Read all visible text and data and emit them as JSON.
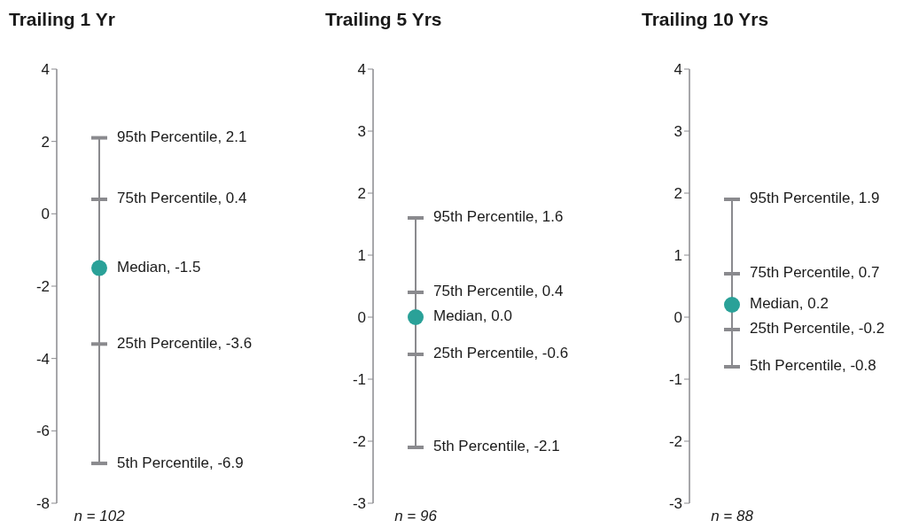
{
  "chart_data": [
    {
      "type": "box",
      "title": "Trailing 1 Yr",
      "categories": [
        "n = 102"
      ],
      "color": "#8a8a8e",
      "marker": "circle",
      "ylim": [
        -8,
        4
      ],
      "yticks": [
        -8,
        -6,
        -4,
        -2,
        0,
        2,
        4
      ],
      "grid": false,
      "legend": false,
      "boxes": [
        {
          "low": -6.9,
          "q1": -3.6,
          "median": -1.5,
          "q3": 0.4,
          "high": 2.1
        }
      ],
      "annotations": [
        "95th Percentile, 2.1",
        "75th Percentile, 0.4",
        "Median, -1.5",
        "25th Percentile, -3.6",
        "5th Percentile, -6.9"
      ]
    },
    {
      "type": "box",
      "title": "Trailing 5 Yrs",
      "categories": [
        "n = 96"
      ],
      "color": "#8a8a8e",
      "marker": "circle",
      "ylim": [
        -3,
        4
      ],
      "yticks": [
        -3,
        -2,
        -1,
        0,
        1,
        2,
        3,
        4
      ],
      "grid": false,
      "legend": false,
      "boxes": [
        {
          "low": -2.1,
          "q1": -0.6,
          "median": 0.0,
          "q3": 0.4,
          "high": 1.6
        }
      ],
      "annotations": [
        "95th Percentile, 1.6",
        "75th Percentile, 0.4",
        "Median, 0.0",
        "25th Percentile, -0.6",
        "5th Percentile, -2.1"
      ]
    },
    {
      "type": "box",
      "title": "Trailing 10 Yrs",
      "categories": [
        "n = 88"
      ],
      "color": "#8a8a8e",
      "marker": "circle",
      "ylim": [
        -3,
        4
      ],
      "yticks": [
        -3,
        -2,
        -1,
        0,
        1,
        2,
        3,
        4
      ],
      "grid": false,
      "legend": false,
      "boxes": [
        {
          "low": -0.8,
          "q1": -0.2,
          "median": 0.2,
          "q3": 0.7,
          "high": 1.9
        }
      ],
      "annotations": [
        "95th Percentile, 1.9",
        "75th Percentile, 0.7",
        "Median, 0.2",
        "25th Percentile, -0.2",
        "5th Percentile, -0.8"
      ]
    }
  ]
}
